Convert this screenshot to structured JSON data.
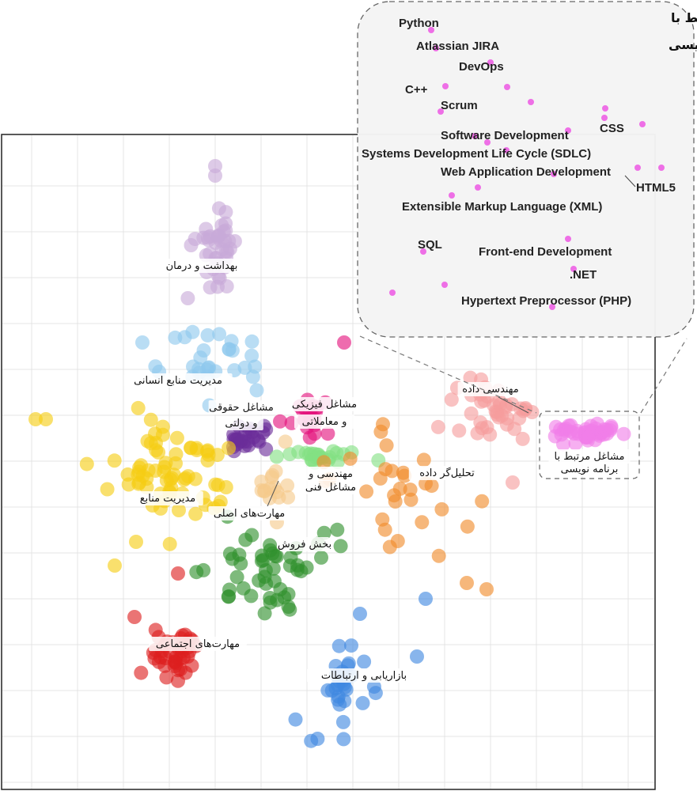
{
  "chart_data": {
    "type": "scatter",
    "grid": true,
    "clusters": [
      {
        "label": "بهداشت و درمان",
        "color": "#c8a9d9",
        "center": [
          272,
          320
        ],
        "spread": [
          22,
          45
        ],
        "count": 40
      },
      {
        "label": "مدیریت منابع انسانی",
        "color": "#8ec8ee",
        "center": [
          265,
          455
        ],
        "spread": [
          45,
          35
        ],
        "count": 30
      },
      {
        "label": "مشاغل حقوقی و دولتی",
        "color": "#6a2d9a",
        "center": [
          315,
          555
        ],
        "spread": [
          25,
          18
        ],
        "count": 26
      },
      {
        "label": "مشاغل فیزیکی و معاملاتی",
        "color": "#e3127d",
        "center": [
          385,
          530
        ],
        "spread": [
          22,
          18
        ],
        "count": 22
      },
      {
        "label": "مهندسی و مشاغل فنی",
        "color": "#82e082",
        "center": [
          405,
          578
        ],
        "spread": [
          35,
          8
        ],
        "count": 24
      },
      {
        "label": "مهارت‌های اصلی",
        "color": "#f6c98a",
        "center": [
          350,
          610
        ],
        "spread": [
          20,
          30
        ],
        "count": 16
      },
      {
        "label": "مدیریت منابع",
        "color": "#f5cd14",
        "center": [
          220,
          600
        ],
        "spread": [
          60,
          50
        ],
        "count": 70
      },
      {
        "label": "بخش فروش",
        "color": "#2e8f2b",
        "center": [
          345,
          720
        ],
        "spread": [
          60,
          45
        ],
        "count": 50
      },
      {
        "label": "تحلیل‌گر داده",
        "color": "#f08a2a",
        "center": [
          510,
          620
        ],
        "spread": [
          60,
          65
        ],
        "count": 30
      },
      {
        "label": "مهندسی داده",
        "color": "#f59c9c",
        "center": [
          625,
          520
        ],
        "spread": [
          45,
          40
        ],
        "count": 40
      },
      {
        "label": "مشاغل مرتبط با برنامه نویسی",
        "color": "#f07ee8",
        "center": [
          740,
          547
        ],
        "spread": [
          40,
          8
        ],
        "count": 45
      },
      {
        "label": "مهارت‌های اجتماعی",
        "color": "#dd1f1f",
        "center": [
          225,
          825
        ],
        "spread": [
          28,
          25
        ],
        "count": 40
      },
      {
        "label": "بازاریابی و ارتباطات",
        "color": "#3f87e0",
        "center": [
          435,
          875
        ],
        "spread": [
          35,
          50
        ],
        "count": 30
      }
    ],
    "inset": {
      "title_line1": "مشاغل مرتبط با",
      "title_line2": "برنامه‌نویسی",
      "point_color": "#ee6fe6",
      "labels": [
        "Python",
        "Atlassian JIRA",
        "DevOps",
        "C++",
        "Scrum",
        "Software Development",
        "CSS",
        "Systems Development Life Cycle (SDLC)",
        "Web Application Development",
        "HTML5",
        "Extensible Markup Language (XML)",
        "SQL",
        "Front-end Development",
        ".NET",
        "Hypertext Preprocessor (PHP)"
      ]
    }
  }
}
